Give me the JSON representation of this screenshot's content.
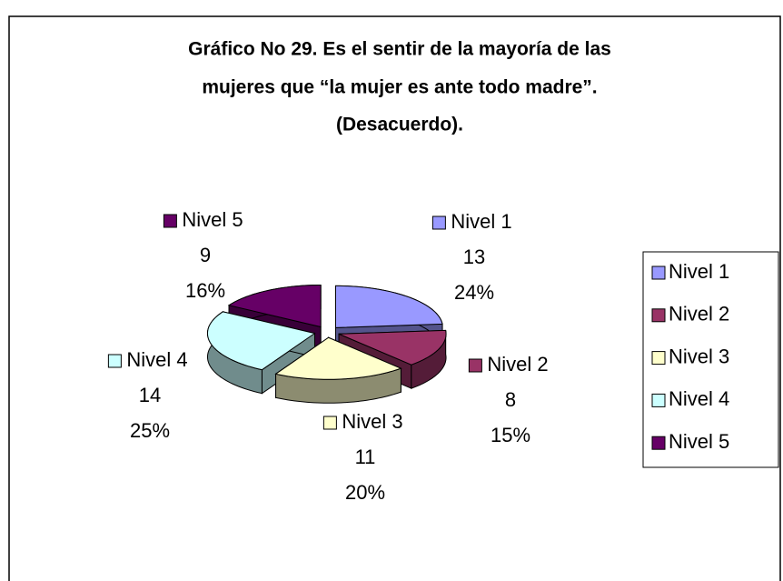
{
  "chart_data": {
    "type": "pie3d",
    "title": [
      "Gráfico No 29. Es el sentir de la mayoría de las",
      "mujeres que “la mujer es ante todo madre”.",
      "(Desacuerdo)."
    ],
    "categories": [
      "Nivel 1",
      "Nivel 2",
      "Nivel 3",
      "Nivel 4",
      "Nivel 5"
    ],
    "values": [
      13,
      8,
      11,
      14,
      9
    ],
    "percent_labels": [
      "24%",
      "15%",
      "20%",
      "25%",
      "16%"
    ],
    "colors": [
      "#9999ff",
      "#993366",
      "#ffffcc",
      "#ccffff",
      "#660066"
    ],
    "legend": "right"
  }
}
